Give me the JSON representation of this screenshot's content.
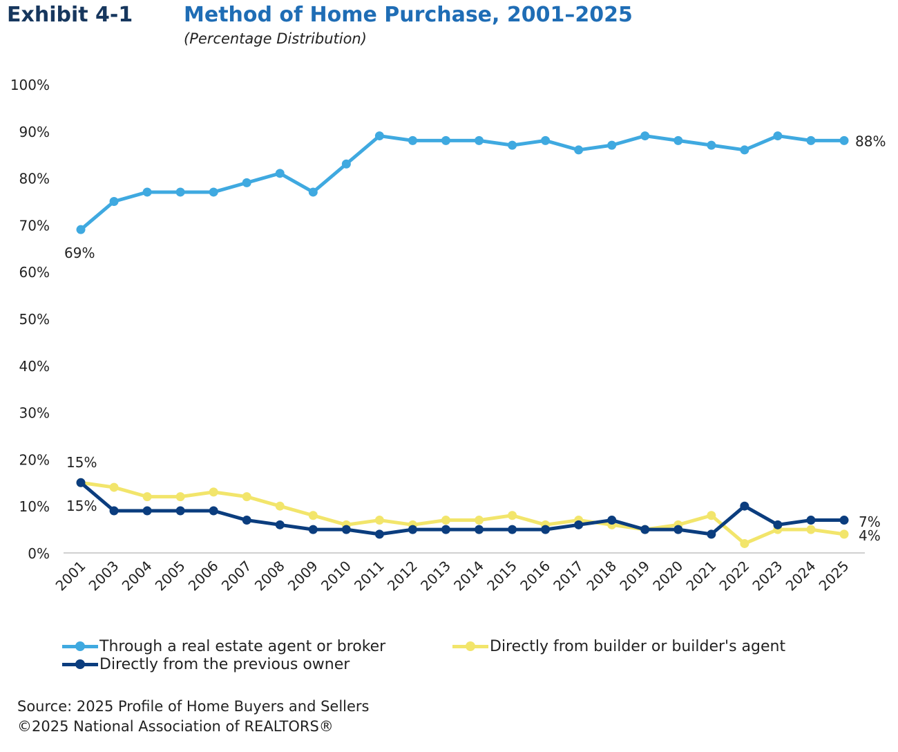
{
  "header": {
    "exhibit": "Exhibit 4-1",
    "title": "Method of Home Purchase, 2001–2025",
    "subtitle": "(Percentage Distribution)"
  },
  "chart_data": {
    "type": "line",
    "title": "Method of Home Purchase, 2001–2025",
    "subtitle": "(Percentage Distribution)",
    "categories": [
      "2001",
      "2003",
      "2004",
      "2005",
      "2006",
      "2007",
      "2008",
      "2009",
      "2010",
      "2011",
      "2012",
      "2013",
      "2014",
      "2015",
      "2016",
      "2017",
      "2018",
      "2019",
      "2020",
      "2021",
      "2022",
      "2023",
      "2024",
      "2025"
    ],
    "ylim": [
      0,
      100
    ],
    "yticks": [
      "0%",
      "10%",
      "20%",
      "30%",
      "40%",
      "50%",
      "60%",
      "70%",
      "80%",
      "90%",
      "100%"
    ],
    "grid": false,
    "legend_position": "bottom",
    "series": [
      {
        "name": "Through a real estate agent or broker",
        "color": "#3fa9e0",
        "values": [
          69,
          75,
          77,
          77,
          77,
          79,
          81,
          77,
          83,
          89,
          88,
          88,
          88,
          87,
          88,
          86,
          87,
          89,
          88,
          87,
          86,
          89,
          88,
          88
        ],
        "labels": {
          "first": "69%",
          "last": "88%"
        }
      },
      {
        "name": "Directly from builder or builder's agent",
        "color": "#f2e56b",
        "values": [
          15,
          14,
          12,
          12,
          13,
          12,
          10,
          8,
          6,
          7,
          6,
          7,
          7,
          8,
          6,
          7,
          6,
          5,
          6,
          8,
          2,
          5,
          5,
          4
        ],
        "labels": {
          "first": "15%",
          "last": "4%"
        }
      },
      {
        "name": "Directly from the previous owner",
        "color": "#0b3d7e",
        "values": [
          15,
          9,
          9,
          9,
          9,
          7,
          6,
          5,
          5,
          4,
          5,
          5,
          5,
          5,
          5,
          6,
          7,
          5,
          5,
          4,
          10,
          6,
          7,
          7
        ],
        "labels": {
          "first": "15%",
          "last": "7%"
        }
      }
    ]
  },
  "footer": {
    "source": "Source: 2025 Profile of Home Buyers and Sellers",
    "copyright": "©2025 National Association of REALTORS®"
  }
}
